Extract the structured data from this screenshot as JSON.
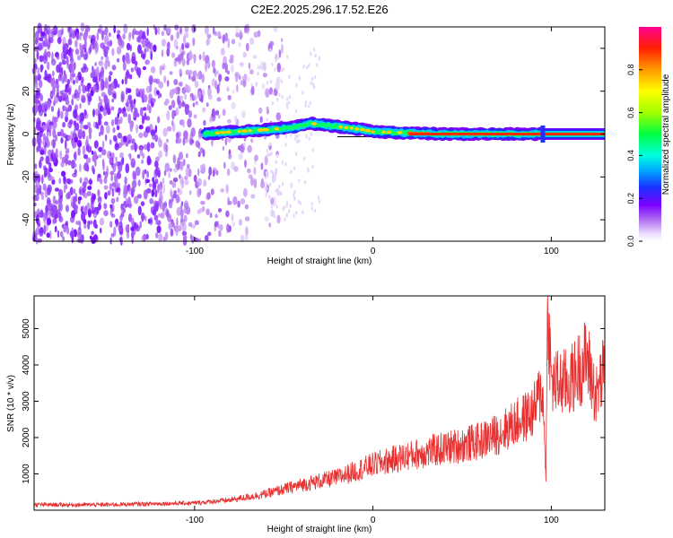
{
  "title": "C2E2.2025.296.17.52.E26",
  "chart_data": [
    {
      "type": "heatmap",
      "xlabel": "Height of straight line (km)",
      "ylabel": "Frequency (Hz)",
      "xlim": [
        -190,
        130
      ],
      "ylim": [
        -50,
        50
      ],
      "xticks": [
        -100,
        0,
        100
      ],
      "yticks": [
        -40,
        -20,
        0,
        20,
        40
      ],
      "colorbar": {
        "label": "Normalized spectral amplitude",
        "range": [
          0,
          1
        ],
        "ticks": [
          "0.0",
          "0.2",
          "0.4",
          "0.6",
          "0.8"
        ]
      },
      "track": {
        "x": [
          -95,
          -80,
          -60,
          -45,
          -35,
          -25,
          -15,
          -5,
          0,
          5,
          20,
          40,
          60,
          80,
          95,
          130
        ],
        "frequency_hz": [
          0,
          1,
          2,
          3,
          5,
          4,
          3,
          2,
          1,
          1,
          0.5,
          0,
          0,
          0,
          0,
          0
        ]
      },
      "reference_line_hz": 0
    },
    {
      "type": "line",
      "xlabel": "Height of straight line (km)",
      "ylabel": "SNR (10 * v/v)",
      "xlim": [
        -190,
        130
      ],
      "ylim": [
        0,
        5900
      ],
      "xticks": [
        -100,
        0,
        100
      ],
      "yticks": [
        1000,
        2000,
        3000,
        4000,
        5000
      ],
      "series": [
        {
          "color": "#e83030",
          "x": [
            -190,
            -150,
            -120,
            -100,
            -80,
            -60,
            -40,
            -20,
            0,
            20,
            40,
            60,
            70,
            80,
            90,
            95,
            97,
            98,
            100,
            110,
            120,
            125,
            128,
            130
          ],
          "values": [
            150,
            150,
            180,
            200,
            280,
            450,
            700,
            900,
            1250,
            1500,
            1700,
            1900,
            2100,
            2400,
            2700,
            3400,
            1000,
            5800,
            3500,
            3500,
            4200,
            3100,
            3600,
            3900
          ]
        }
      ]
    }
  ]
}
